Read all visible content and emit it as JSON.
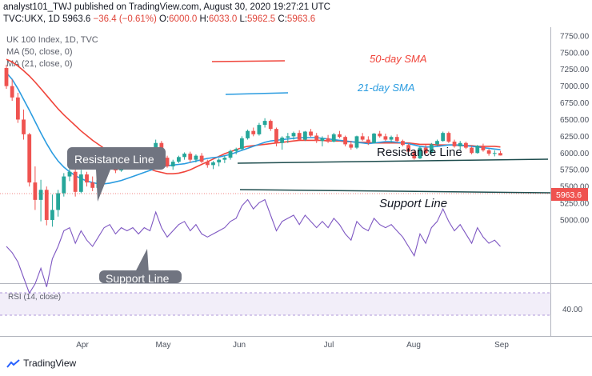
{
  "header": {
    "line1": "analyst101_TWJ published on TradingView.com, August 30, 2020 19:27:21 UTC",
    "symbol": "TVC:UKX, 1D",
    "last": "5963.6",
    "change": "−36.4 (−0.61%)",
    "o_label": "O:",
    "o": "6000.0",
    "h_label": "H:",
    "h": "6033.0",
    "l_label": "L:",
    "l": "5962.5",
    "c_label": "C:",
    "c": "5963.6"
  },
  "legend": {
    "title": "UK 100 Index, 1D, TVC",
    "ma50": "MA (50, close, 0)",
    "ma21": "MA (21, close, 0)"
  },
  "annotations": {
    "sma50": "50-day SMA",
    "sma21": "21-day SMA",
    "resistance_box": "Resistance Line",
    "support_box": "Support Line",
    "resistance_text": "Resistance Line",
    "support_text": "Support Line"
  },
  "price_badge": "5963.6",
  "rsi": {
    "label": "RSI (14, close)",
    "level": "40.00"
  },
  "brand": "TradingView",
  "colors": {
    "up": "#26a69a",
    "down": "#ef5350",
    "ma50": "#f0453b",
    "ma21": "#2b9ce0",
    "trend": "#1e4d4e",
    "rsi": "#7e57c2",
    "callout": "#707480"
  },
  "chart_data": {
    "type": "candlestick",
    "title": "UK 100 Index, 1D, TVC",
    "x_ticks": [
      "Apr",
      "May",
      "Jun",
      "Jul",
      "Aug",
      "Sep"
    ],
    "y_ticks": [
      5000,
      5250,
      5500,
      5750,
      6000,
      6250,
      6500,
      6750,
      7000,
      7250,
      7500,
      7750
    ],
    "ylim": [
      4870,
      7870
    ],
    "last_price": 5963.6,
    "candles": [
      [
        7270,
        7320,
        6960,
        7000
      ],
      [
        7000,
        7100,
        6780,
        6830
      ],
      [
        6830,
        6900,
        6450,
        6500
      ],
      [
        6500,
        6650,
        6200,
        6280
      ],
      [
        6280,
        6300,
        5500,
        5560
      ],
      [
        5560,
        5800,
        5150,
        5300
      ],
      [
        5300,
        5600,
        4980,
        5450
      ],
      [
        5450,
        5500,
        4920,
        5000
      ],
      [
        5000,
        5380,
        4900,
        5150
      ],
      [
        5150,
        5450,
        5050,
        5400
      ],
      [
        5400,
        5700,
        5350,
        5650
      ],
      [
        5650,
        5780,
        5580,
        5720
      ],
      [
        5720,
        5780,
        5350,
        5420
      ],
      [
        5420,
        5750,
        5400,
        5680
      ],
      [
        5680,
        5720,
        5500,
        5560
      ],
      [
        5560,
        5650,
        5430,
        5480
      ],
      [
        5480,
        5650,
        5460,
        5600
      ],
      [
        5600,
        5850,
        5580,
        5820
      ],
      [
        5820,
        5900,
        5750,
        5880
      ],
      [
        5880,
        5920,
        5700,
        5740
      ],
      [
        5740,
        5900,
        5720,
        5860
      ],
      [
        5860,
        5880,
        5780,
        5800
      ],
      [
        5800,
        5900,
        5760,
        5870
      ],
      [
        5870,
        5910,
        5760,
        5780
      ],
      [
        5780,
        5920,
        5770,
        5900
      ],
      [
        5900,
        5960,
        5850,
        5880
      ],
      [
        5880,
        6200,
        5870,
        6150
      ],
      [
        6150,
        6180,
        5900,
        5930
      ],
      [
        5930,
        5960,
        5780,
        5800
      ],
      [
        5800,
        5900,
        5750,
        5870
      ],
      [
        5870,
        5960,
        5850,
        5940
      ],
      [
        5940,
        6010,
        5900,
        5990
      ],
      [
        5990,
        6020,
        5860,
        5900
      ],
      [
        5900,
        5980,
        5860,
        5960
      ],
      [
        5960,
        6000,
        5850,
        5870
      ],
      [
        5870,
        5900,
        5780,
        5820
      ],
      [
        5820,
        5880,
        5760,
        5860
      ],
      [
        5860,
        5920,
        5800,
        5900
      ],
      [
        5900,
        5960,
        5850,
        5930
      ],
      [
        5930,
        6050,
        5900,
        6030
      ],
      [
        6030,
        6080,
        5980,
        6060
      ],
      [
        6060,
        6250,
        6040,
        6220
      ],
      [
        6220,
        6350,
        6200,
        6330
      ],
      [
        6330,
        6380,
        6250,
        6280
      ],
      [
        6280,
        6450,
        6260,
        6420
      ],
      [
        6420,
        6520,
        6380,
        6480
      ],
      [
        6480,
        6500,
        6330,
        6360
      ],
      [
        6360,
        6380,
        6100,
        6150
      ],
      [
        6150,
        6250,
        6050,
        6230
      ],
      [
        6230,
        6300,
        6150,
        6250
      ],
      [
        6250,
        6320,
        6200,
        6300
      ],
      [
        6300,
        6340,
        6180,
        6200
      ],
      [
        6200,
        6330,
        6180,
        6320
      ],
      [
        6320,
        6360,
        6240,
        6260
      ],
      [
        6260,
        6300,
        6150,
        6180
      ],
      [
        6180,
        6250,
        6100,
        6220
      ],
      [
        6220,
        6270,
        6150,
        6170
      ],
      [
        6170,
        6300,
        6160,
        6280
      ],
      [
        6280,
        6330,
        6220,
        6240
      ],
      [
        6240,
        6260,
        6100,
        6130
      ],
      [
        6130,
        6180,
        6050,
        6080
      ],
      [
        6080,
        6260,
        6060,
        6250
      ],
      [
        6250,
        6300,
        6180,
        6200
      ],
      [
        6200,
        6250,
        6120,
        6150
      ],
      [
        6150,
        6300,
        6140,
        6290
      ],
      [
        6290,
        6330,
        6230,
        6250
      ],
      [
        6250,
        6290,
        6180,
        6200
      ],
      [
        6200,
        6260,
        6150,
        6240
      ],
      [
        6240,
        6280,
        6160,
        6180
      ],
      [
        6180,
        6200,
        6100,
        6120
      ],
      [
        6120,
        6140,
        6000,
        6020
      ],
      [
        6020,
        6050,
        5900,
        5920
      ],
      [
        5920,
        6100,
        5910,
        6080
      ],
      [
        6080,
        6120,
        5990,
        6000
      ],
      [
        6000,
        6150,
        5990,
        6130
      ],
      [
        6130,
        6200,
        6100,
        6180
      ],
      [
        6180,
        6320,
        6170,
        6300
      ],
      [
        6300,
        6320,
        6150,
        6170
      ],
      [
        6170,
        6200,
        6080,
        6100
      ],
      [
        6100,
        6180,
        6050,
        6150
      ],
      [
        6150,
        6170,
        6060,
        6080
      ],
      [
        6080,
        6100,
        5980,
        6000
      ],
      [
        6000,
        6120,
        5990,
        6110
      ],
      [
        6110,
        6140,
        6020,
        6040
      ],
      [
        6040,
        6060,
        5960,
        5990
      ],
      [
        5990,
        6040,
        5950,
        6000
      ],
      [
        6000,
        6033,
        5962.5,
        5963.6
      ]
    ],
    "series": [
      {
        "name": "MA (50, close, 0)",
        "values": [
          7400,
          7360,
          7300,
          7230,
          7150,
          7060,
          6960,
          6860,
          6760,
          6660,
          6570,
          6490,
          6410,
          6330,
          6260,
          6190,
          6130,
          6070,
          6020,
          5980,
          5940,
          5900,
          5860,
          5820,
          5790,
          5760,
          5730,
          5710,
          5690,
          5690,
          5700,
          5720,
          5750,
          5790,
          5830,
          5870,
          5910,
          5950,
          5990,
          6020,
          6050,
          6080,
          6100,
          6110,
          6120,
          6130,
          6140,
          6150,
          6160,
          6170,
          6180,
          6190,
          6190,
          6190,
          6190,
          6190,
          6180,
          6180,
          6180,
          6170,
          6170,
          6160,
          6160,
          6160,
          6150,
          6150,
          6150,
          6150,
          6150,
          6150,
          6150,
          6140,
          6130,
          6130,
          6130,
          6120,
          6120,
          6120,
          6120,
          6110,
          6110,
          6110,
          6100,
          6100,
          6100,
          6100,
          6090
        ]
      },
      {
        "name": "MA (21, close, 0)",
        "values": [
          7200,
          7100,
          6960,
          6800,
          6640,
          6470,
          6300,
          6140,
          6000,
          5880,
          5790,
          5720,
          5660,
          5620,
          5580,
          5560,
          5540,
          5540,
          5550,
          5570,
          5590,
          5620,
          5650,
          5680,
          5710,
          5740,
          5770,
          5790,
          5810,
          5820,
          5830,
          5840,
          5860,
          5880,
          5900,
          5920,
          5930,
          5940,
          5960,
          5980,
          6010,
          6040,
          6070,
          6100,
          6130,
          6160,
          6180,
          6190,
          6200,
          6210,
          6220,
          6230,
          6230,
          6230,
          6230,
          6220,
          6210,
          6200,
          6190,
          6180,
          6170,
          6160,
          6150,
          6140,
          6150,
          6160,
          6170,
          6170,
          6160,
          6150,
          6140,
          6120,
          6100,
          6090,
          6090,
          6100,
          6110,
          6120,
          6120,
          6120,
          6110,
          6100,
          6090,
          6080,
          6070,
          6060,
          6050
        ]
      }
    ],
    "rsi": [
      40,
      38,
      35,
      30,
      25,
      28,
      33,
      27,
      36,
      40,
      45,
      46,
      41,
      45,
      42,
      40,
      43,
      46,
      47,
      44,
      46,
      45,
      46,
      44,
      46,
      45,
      51,
      46,
      43,
      45,
      47,
      48,
      45,
      47,
      44,
      43,
      44,
      45,
      46,
      48,
      49,
      53,
      55,
      52,
      54,
      55,
      50,
      45,
      48,
      49,
      50,
      47,
      50,
      48,
      46,
      48,
      46,
      49,
      47,
      44,
      42,
      48,
      46,
      45,
      49,
      47,
      46,
      47,
      45,
      43,
      40,
      37,
      44,
      41,
      46,
      48,
      52,
      48,
      45,
      47,
      44,
      41,
      46,
      43,
      41,
      42,
      40
    ]
  }
}
